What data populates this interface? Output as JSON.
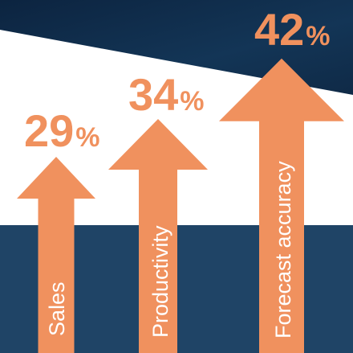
{
  "chart_data": {
    "type": "bar",
    "categories": [
      "Sales",
      "Productivity",
      "Forecast accuracy"
    ],
    "values": [
      29,
      34,
      42
    ],
    "value_labels": [
      {
        "number": "29",
        "unit": "%"
      },
      {
        "number": "34",
        "unit": "%"
      },
      {
        "number": "42",
        "unit": "%"
      }
    ],
    "title": "",
    "xlabel": "",
    "ylabel": "",
    "legend": "none",
    "grid": false
  },
  "colors": {
    "arrow": "#f0915e",
    "band": "#1f4466",
    "top_navy": "#0f2a47",
    "background": "#ffffff",
    "label_text": "#ffffff"
  }
}
